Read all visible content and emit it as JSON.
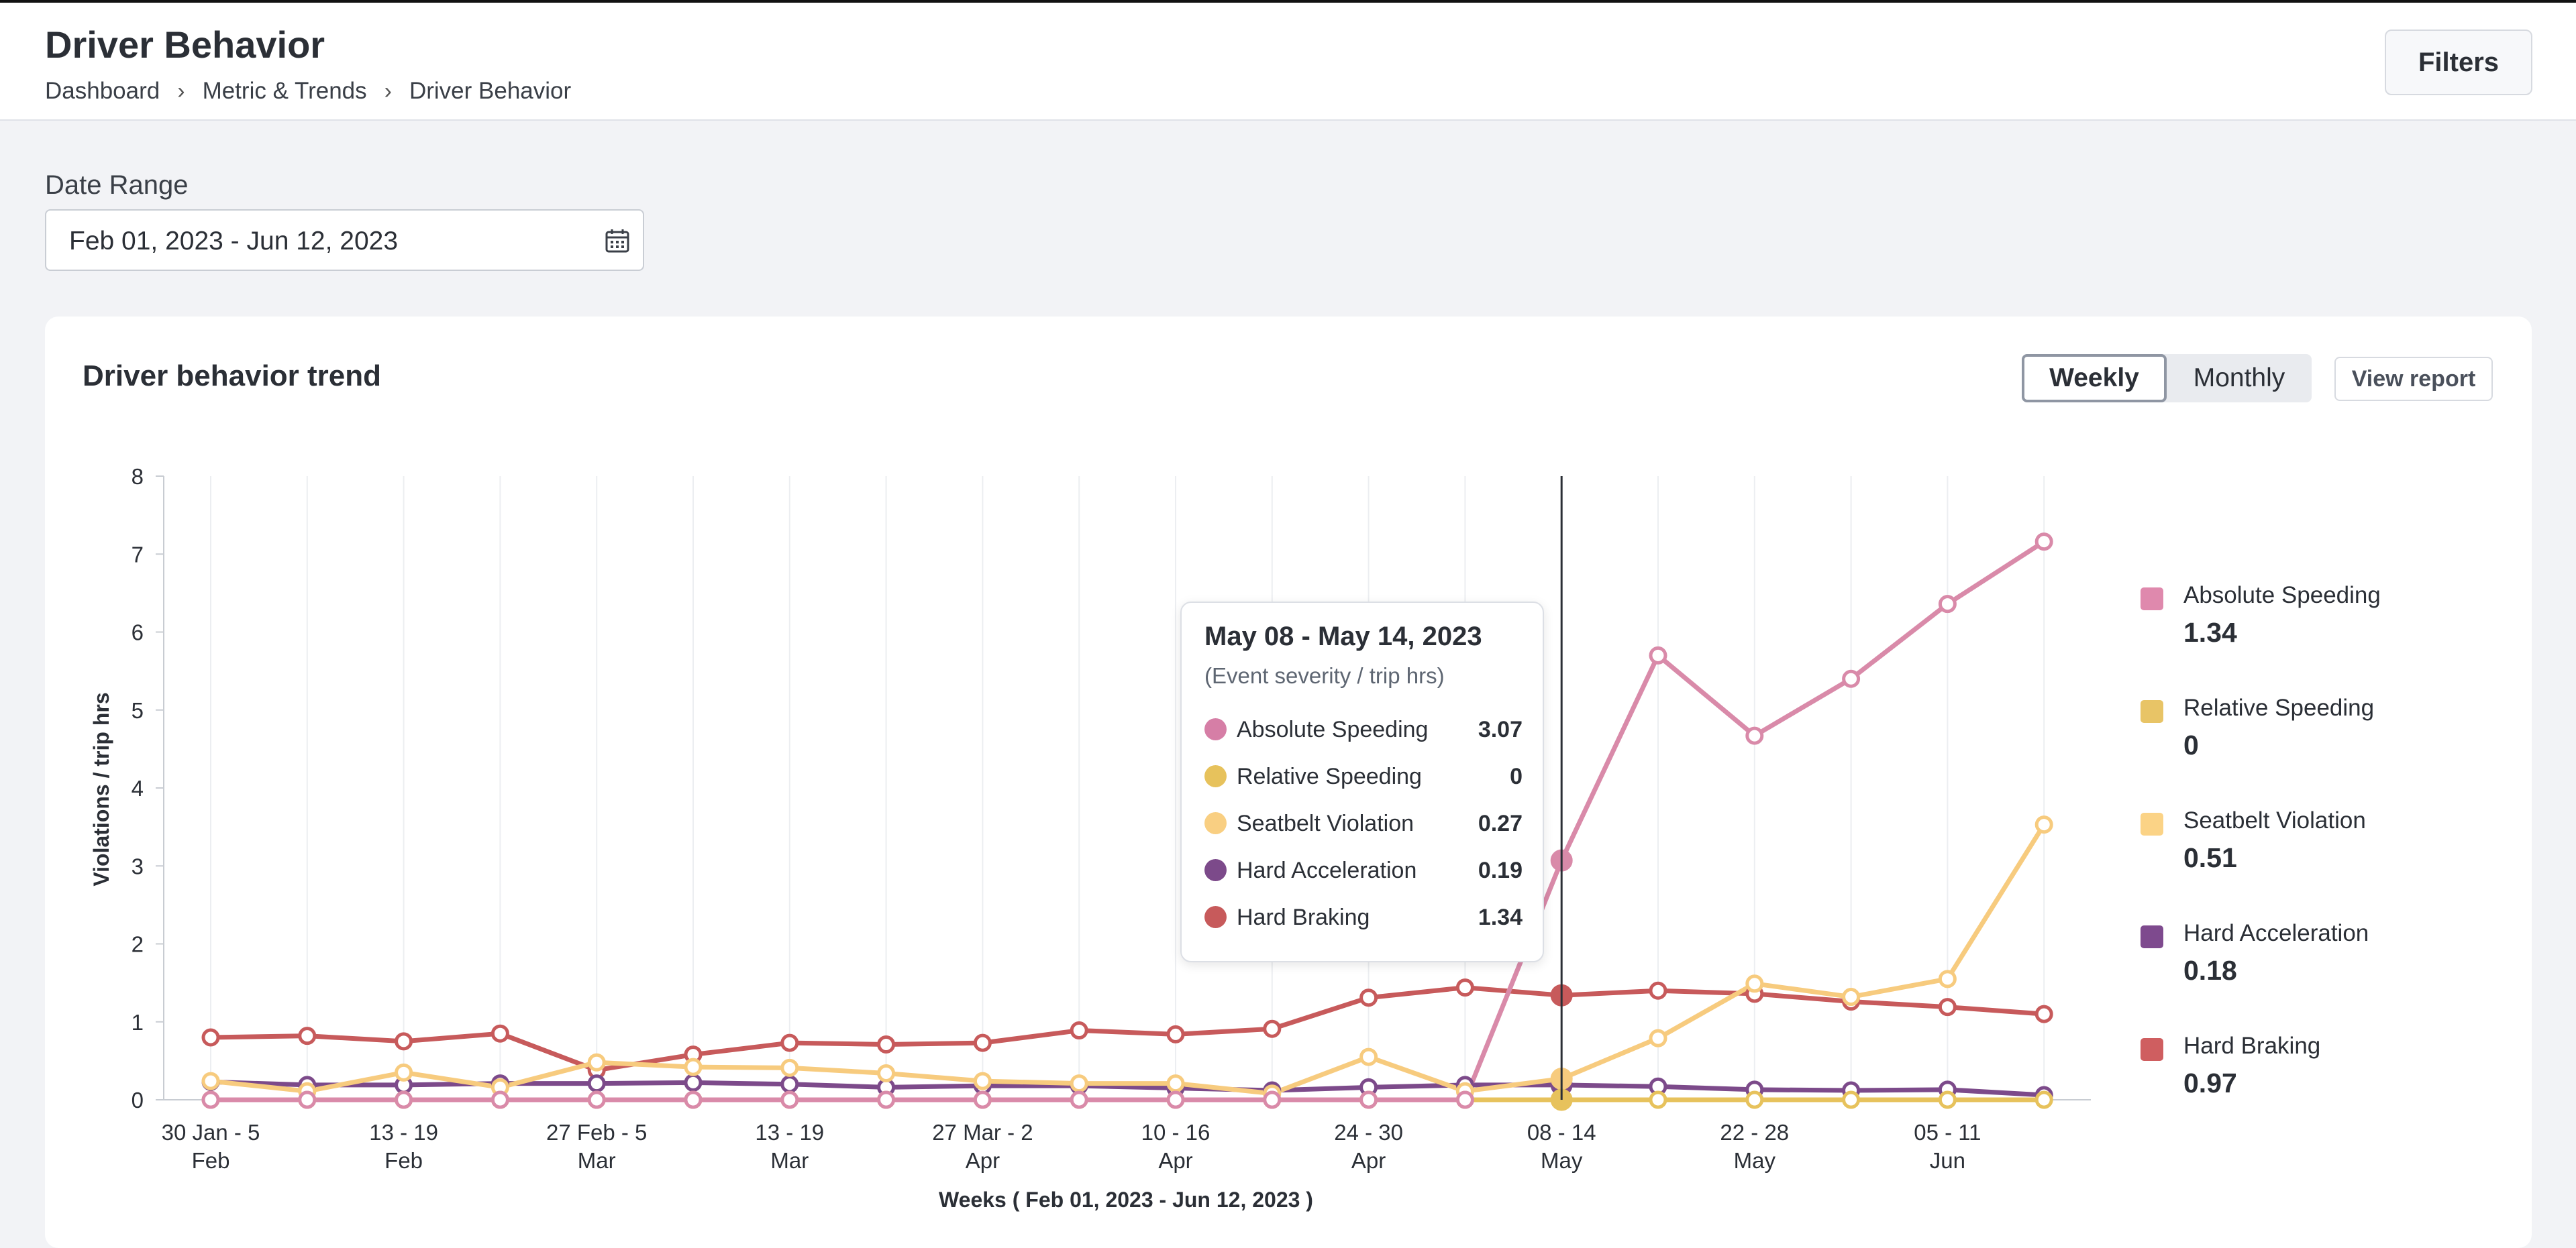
{
  "header": {
    "title": "Driver Behavior",
    "breadcrumb": [
      "Dashboard",
      "Metric & Trends",
      "Driver Behavior"
    ],
    "filters_label": "Filters"
  },
  "date_range": {
    "label": "Date Range",
    "value": "Feb 01, 2023 - Jun 12, 2023",
    "icon": "calendar-icon"
  },
  "card": {
    "title": "Driver behavior trend",
    "toggle": {
      "weekly_label": "Weekly",
      "monthly_label": "Monthly",
      "selected": "Weekly"
    },
    "view_report_label": "View report"
  },
  "tooltip": {
    "title": "May 08 - May 14, 2023",
    "subtitle": "(Event severity / trip hrs)",
    "rows": [
      {
        "name": "Absolute Speeding",
        "value": "3.07",
        "color": "#d67ea6"
      },
      {
        "name": "Relative Speeding",
        "value": "0",
        "color": "#e7c25c"
      },
      {
        "name": "Seatbelt Violation",
        "value": "0.27",
        "color": "#f9cf82"
      },
      {
        "name": "Hard Acceleration",
        "value": "0.19",
        "color": "#7c4a8a"
      },
      {
        "name": "Hard Braking",
        "value": "1.34",
        "color": "#c75a5b"
      }
    ]
  },
  "legend": [
    {
      "name": "Absolute Speeding",
      "value": "1.34",
      "color": "#df89ad"
    },
    {
      "name": "Relative Speeding",
      "value": "0",
      "color": "#e8c466"
    },
    {
      "name": "Seatbelt Violation",
      "value": "0.51",
      "color": "#fbd386"
    },
    {
      "name": "Hard Acceleration",
      "value": "0.18",
      "color": "#7e4a8e"
    },
    {
      "name": "Hard Braking",
      "value": "0.97",
      "color": "#cf5e60"
    }
  ],
  "chart_data": {
    "type": "line",
    "ylabel": "Violations / trip hrs",
    "xlabel": "Weeks ( Feb 01, 2023 - Jun 12, 2023 )",
    "ylim": [
      0,
      8
    ],
    "yticks": [
      "0",
      "1",
      "2",
      "3",
      "4",
      "5",
      "6",
      "7",
      "8"
    ],
    "grid": "vertical",
    "legend_position": "right",
    "highlight_index": 14,
    "week_labels": [
      [
        "30 Jan - 5",
        "Feb"
      ],
      [
        "",
        ""
      ],
      [
        "13 - 19",
        "Feb"
      ],
      [
        "",
        ""
      ],
      [
        "27 Feb - 5",
        "Mar"
      ],
      [
        "",
        ""
      ],
      [
        "13 - 19",
        "Mar"
      ],
      [
        "",
        ""
      ],
      [
        "27 Mar - 2",
        "Apr"
      ],
      [
        "",
        ""
      ],
      [
        "10 - 16",
        "Apr"
      ],
      [
        "",
        ""
      ],
      [
        "24 - 30",
        "Apr"
      ],
      [
        "",
        ""
      ],
      [
        "08 - 14",
        "May"
      ],
      [
        "",
        ""
      ],
      [
        "22 - 28",
        "May"
      ],
      [
        "",
        ""
      ],
      [
        "05 - 11",
        "Jun"
      ],
      [
        "",
        ""
      ]
    ],
    "series": [
      {
        "name": "Hard Braking",
        "color": "#c75a5b",
        "values": [
          0.8,
          0.82,
          0.75,
          0.85,
          0.38,
          0.58,
          0.73,
          0.71,
          0.73,
          0.89,
          0.84,
          0.91,
          1.31,
          1.44,
          1.34,
          1.4,
          1.36,
          1.26,
          1.19,
          1.1
        ]
      },
      {
        "name": "Hard Acceleration",
        "color": "#7c4a8a",
        "values": [
          0.23,
          0.19,
          0.19,
          0.21,
          0.21,
          0.22,
          0.2,
          0.16,
          0.18,
          0.18,
          0.15,
          0.12,
          0.16,
          0.19,
          0.19,
          0.17,
          0.13,
          0.12,
          0.13,
          0.06
        ]
      },
      {
        "name": "Seatbelt Violation",
        "color": "#f7cb7e",
        "values": [
          0.24,
          0.11,
          0.35,
          0.16,
          0.48,
          0.42,
          0.41,
          0.34,
          0.24,
          0.21,
          0.21,
          0.08,
          0.55,
          0.11,
          0.27,
          0.79,
          1.49,
          1.32,
          1.55,
          3.53
        ]
      },
      {
        "name": "Relative Speeding",
        "color": "#e7c25c",
        "values": [
          0,
          0,
          0,
          0,
          0,
          0,
          0,
          0,
          0,
          0,
          0,
          0,
          0,
          0,
          0,
          0,
          0,
          0,
          0,
          0
        ]
      },
      {
        "name": "Absolute Speeding",
        "color": "#d98aa9",
        "values": [
          0,
          0,
          0,
          0,
          0,
          0,
          0,
          0,
          0,
          0,
          0,
          0,
          0,
          0,
          3.07,
          5.7,
          4.67,
          5.4,
          6.36,
          7.16
        ]
      }
    ]
  }
}
